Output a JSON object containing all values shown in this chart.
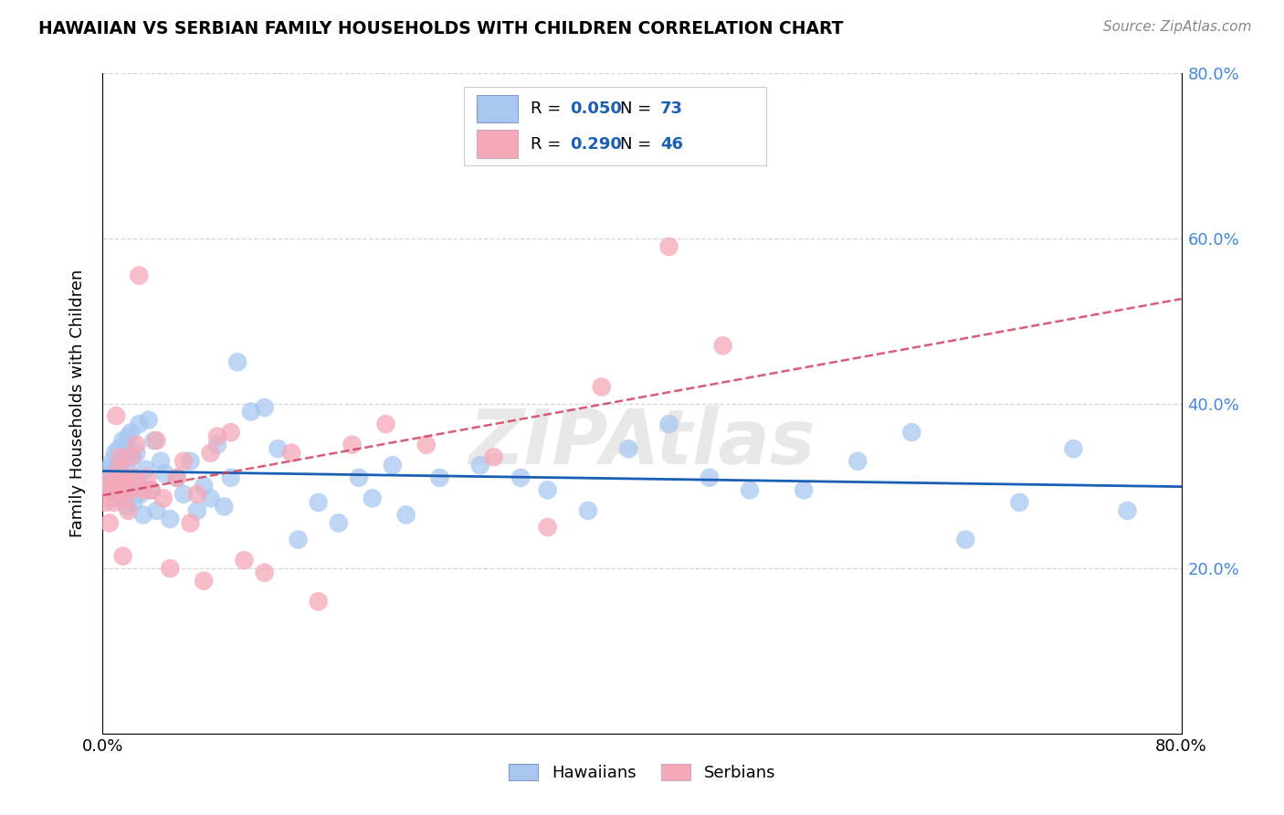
{
  "title": "HAWAIIAN VS SERBIAN FAMILY HOUSEHOLDS WITH CHILDREN CORRELATION CHART",
  "source": "Source: ZipAtlas.com",
  "ylabel": "Family Households with Children",
  "xlim": [
    0.0,
    0.8
  ],
  "ylim": [
    0.0,
    0.8
  ],
  "hawaiian_color": "#a8c8f0",
  "serbian_color": "#f5a8b8",
  "hawaiian_line_color": "#1a5fb4",
  "serbian_line_color": "#d04060",
  "right_axis_color": "#4488dd",
  "hawaiian_R": "0.050",
  "hawaiian_N": "73",
  "serbian_R": "0.290",
  "serbian_N": "46",
  "legend_text_color": "#1a5fb4",
  "watermark": "ZIPAtlas",
  "background_color": "#ffffff",
  "grid_color": "#cccccc",
  "hawaiian_x": [
    0.002,
    0.003,
    0.004,
    0.005,
    0.006,
    0.007,
    0.008,
    0.009,
    0.01,
    0.011,
    0.012,
    0.012,
    0.013,
    0.014,
    0.015,
    0.015,
    0.016,
    0.017,
    0.018,
    0.019,
    0.02,
    0.021,
    0.022,
    0.023,
    0.025,
    0.026,
    0.027,
    0.028,
    0.03,
    0.032,
    0.034,
    0.036,
    0.038,
    0.04,
    0.043,
    0.046,
    0.05,
    0.055,
    0.06,
    0.065,
    0.07,
    0.075,
    0.08,
    0.085,
    0.09,
    0.095,
    0.1,
    0.11,
    0.12,
    0.13,
    0.145,
    0.16,
    0.175,
    0.19,
    0.2,
    0.215,
    0.225,
    0.25,
    0.28,
    0.31,
    0.33,
    0.36,
    0.39,
    0.42,
    0.45,
    0.48,
    0.52,
    0.56,
    0.6,
    0.64,
    0.68,
    0.72,
    0.76
  ],
  "hawaiian_y": [
    0.305,
    0.31,
    0.32,
    0.295,
    0.315,
    0.33,
    0.3,
    0.34,
    0.31,
    0.325,
    0.285,
    0.345,
    0.3,
    0.33,
    0.31,
    0.355,
    0.295,
    0.35,
    0.275,
    0.36,
    0.315,
    0.365,
    0.335,
    0.28,
    0.34,
    0.305,
    0.375,
    0.29,
    0.265,
    0.32,
    0.38,
    0.295,
    0.355,
    0.27,
    0.33,
    0.315,
    0.26,
    0.31,
    0.29,
    0.33,
    0.27,
    0.3,
    0.285,
    0.35,
    0.275,
    0.31,
    0.45,
    0.39,
    0.395,
    0.345,
    0.235,
    0.28,
    0.255,
    0.31,
    0.285,
    0.325,
    0.265,
    0.31,
    0.325,
    0.31,
    0.295,
    0.27,
    0.345,
    0.375,
    0.31,
    0.295,
    0.295,
    0.33,
    0.365,
    0.235,
    0.28,
    0.345,
    0.27
  ],
  "serbian_x": [
    0.002,
    0.003,
    0.005,
    0.006,
    0.008,
    0.009,
    0.01,
    0.011,
    0.012,
    0.013,
    0.014,
    0.015,
    0.016,
    0.018,
    0.019,
    0.02,
    0.021,
    0.023,
    0.025,
    0.027,
    0.03,
    0.033,
    0.036,
    0.04,
    0.045,
    0.05,
    0.055,
    0.06,
    0.065,
    0.07,
    0.075,
    0.08,
    0.085,
    0.095,
    0.105,
    0.12,
    0.14,
    0.16,
    0.185,
    0.21,
    0.24,
    0.29,
    0.33,
    0.37,
    0.42,
    0.46
  ],
  "serbian_y": [
    0.28,
    0.3,
    0.255,
    0.31,
    0.28,
    0.295,
    0.385,
    0.305,
    0.32,
    0.335,
    0.295,
    0.215,
    0.285,
    0.31,
    0.27,
    0.295,
    0.335,
    0.31,
    0.35,
    0.555,
    0.295,
    0.31,
    0.295,
    0.355,
    0.285,
    0.2,
    0.31,
    0.33,
    0.255,
    0.29,
    0.185,
    0.34,
    0.36,
    0.365,
    0.21,
    0.195,
    0.34,
    0.16,
    0.35,
    0.375,
    0.35,
    0.335,
    0.25,
    0.42,
    0.59,
    0.47
  ]
}
